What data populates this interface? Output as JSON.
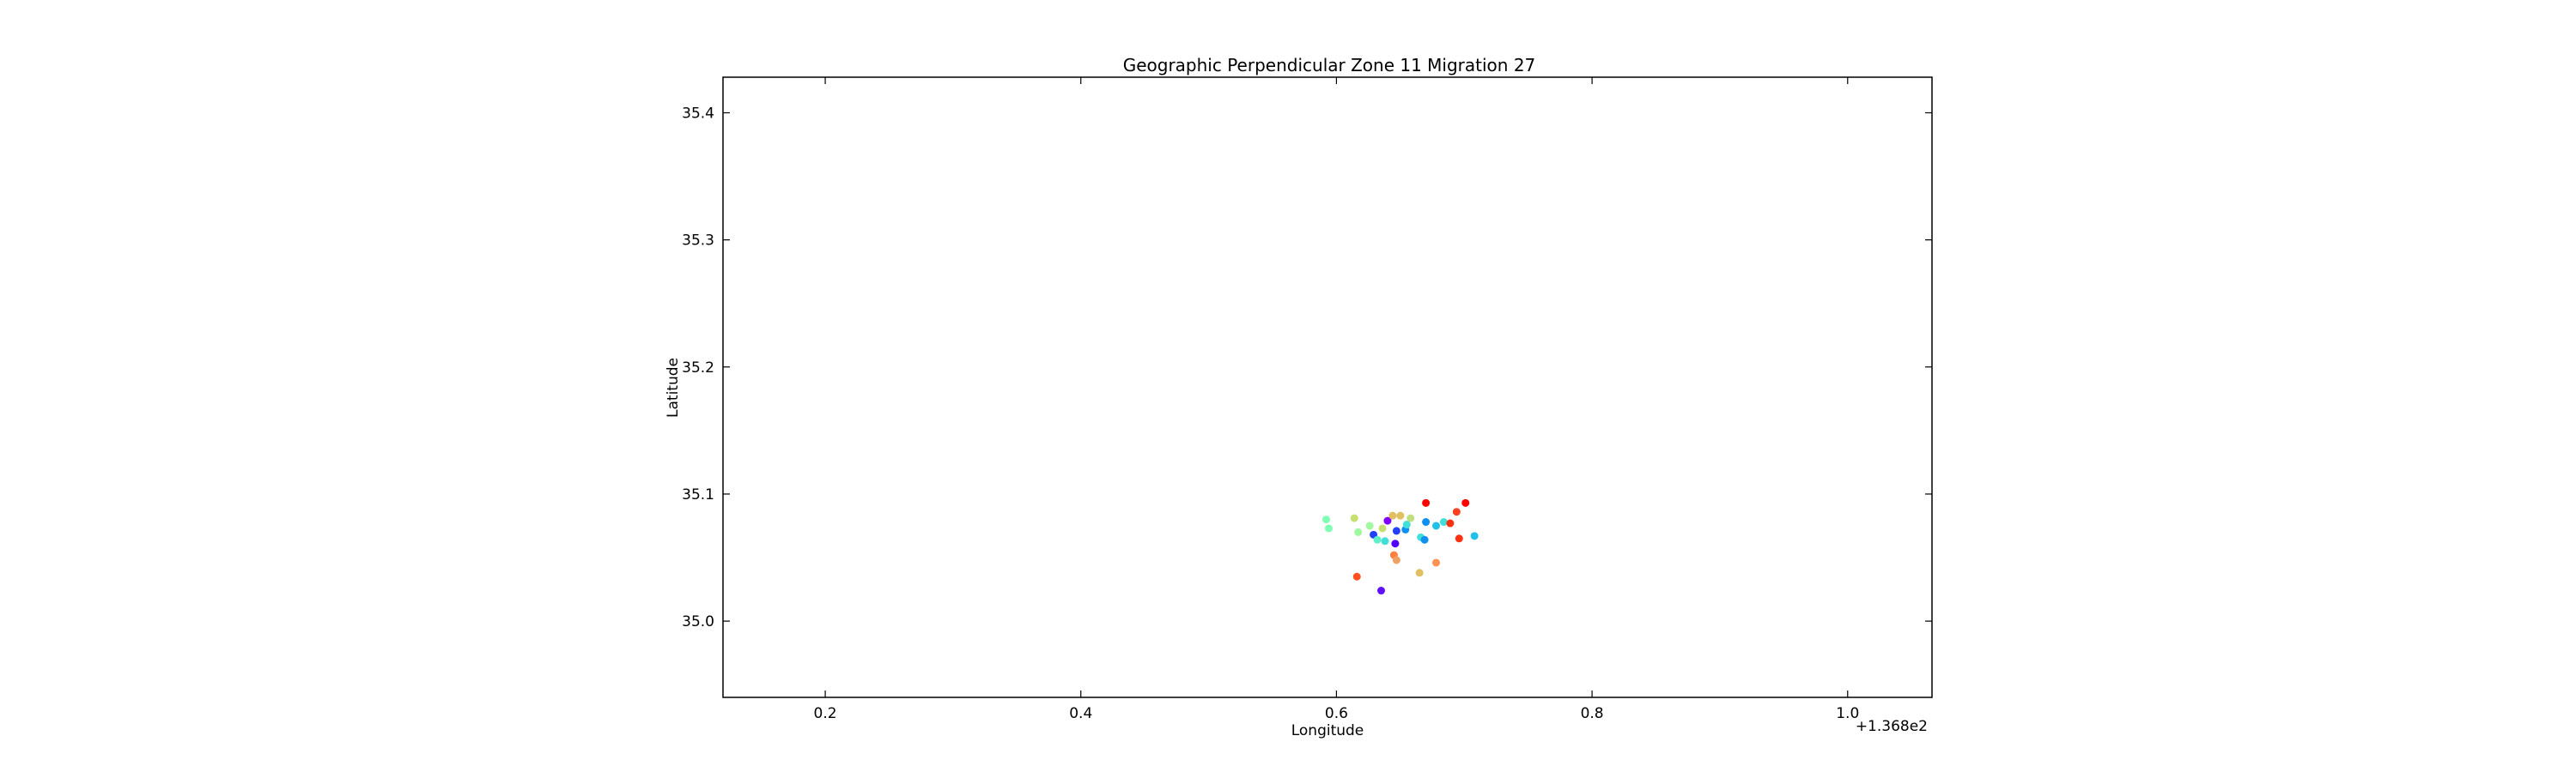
{
  "chart_data": {
    "type": "scatter",
    "title": "Geographic Perpendicular Zone 11 Migration 27",
    "xlabel": "Longitude",
    "ylabel": "Latitude",
    "x_offset_label": "+1.368e2",
    "xlim": [
      136.92,
      137.866
    ],
    "ylim": [
      34.94,
      35.428
    ],
    "x_ticks": [
      137.0,
      137.2,
      137.4,
      137.6,
      137.8
    ],
    "x_tick_labels": [
      "0.2",
      "0.4",
      "0.6",
      "0.8",
      "1.0"
    ],
    "y_ticks": [
      35.0,
      35.1,
      35.2,
      35.3,
      35.4
    ],
    "y_tick_labels": [
      "35.0",
      "35.1",
      "35.2",
      "35.3",
      "35.4"
    ],
    "grid": false,
    "legend": "none",
    "colormap": "rainbow",
    "points": [
      {
        "x": 137.392,
        "y": 35.08,
        "color": "#80ffb4"
      },
      {
        "x": 137.394,
        "y": 35.073,
        "color": "#80ffb4"
      },
      {
        "x": 137.414,
        "y": 35.081,
        "color": "#c8e070"
      },
      {
        "x": 137.417,
        "y": 35.07,
        "color": "#a0f8a0"
      },
      {
        "x": 137.426,
        "y": 35.075,
        "color": "#a0f8a0"
      },
      {
        "x": 137.429,
        "y": 35.068,
        "color": "#2040fa"
      },
      {
        "x": 137.432,
        "y": 35.064,
        "color": "#60f0c8"
      },
      {
        "x": 137.436,
        "y": 35.073,
        "color": "#c8e070"
      },
      {
        "x": 137.438,
        "y": 35.063,
        "color": "#40e0d8"
      },
      {
        "x": 137.44,
        "y": 35.079,
        "color": "#8000ff"
      },
      {
        "x": 137.444,
        "y": 35.083,
        "color": "#e0c060"
      },
      {
        "x": 137.446,
        "y": 35.061,
        "color": "#5000ff"
      },
      {
        "x": 137.447,
        "y": 35.071,
        "color": "#2040fa"
      },
      {
        "x": 137.45,
        "y": 35.083,
        "color": "#e0c060"
      },
      {
        "x": 137.454,
        "y": 35.072,
        "color": "#1090f0"
      },
      {
        "x": 137.455,
        "y": 35.076,
        "color": "#40e0d8"
      },
      {
        "x": 137.458,
        "y": 35.081,
        "color": "#c0e080"
      },
      {
        "x": 137.445,
        "y": 35.052,
        "color": "#ff8040"
      },
      {
        "x": 137.447,
        "y": 35.048,
        "color": "#f0a060"
      },
      {
        "x": 137.416,
        "y": 35.035,
        "color": "#ff5020"
      },
      {
        "x": 137.435,
        "y": 35.024,
        "color": "#6010ff"
      },
      {
        "x": 137.465,
        "y": 35.038,
        "color": "#e0c060"
      },
      {
        "x": 137.478,
        "y": 35.046,
        "color": "#ff9050"
      },
      {
        "x": 137.466,
        "y": 35.066,
        "color": "#40e0d8"
      },
      {
        "x": 137.469,
        "y": 35.064,
        "color": "#1090f0"
      },
      {
        "x": 137.47,
        "y": 35.078,
        "color": "#1090f0"
      },
      {
        "x": 137.47,
        "y": 35.093,
        "color": "#ff0000"
      },
      {
        "x": 137.478,
        "y": 35.075,
        "color": "#20c0e8"
      },
      {
        "x": 137.484,
        "y": 35.078,
        "color": "#40e0d8"
      },
      {
        "x": 137.489,
        "y": 35.077,
        "color": "#ff3010"
      },
      {
        "x": 137.494,
        "y": 35.086,
        "color": "#ff4020"
      },
      {
        "x": 137.496,
        "y": 35.065,
        "color": "#ff3010"
      },
      {
        "x": 137.501,
        "y": 35.093,
        "color": "#ff0000"
      },
      {
        "x": 137.508,
        "y": 35.067,
        "color": "#20c0e8"
      }
    ]
  }
}
